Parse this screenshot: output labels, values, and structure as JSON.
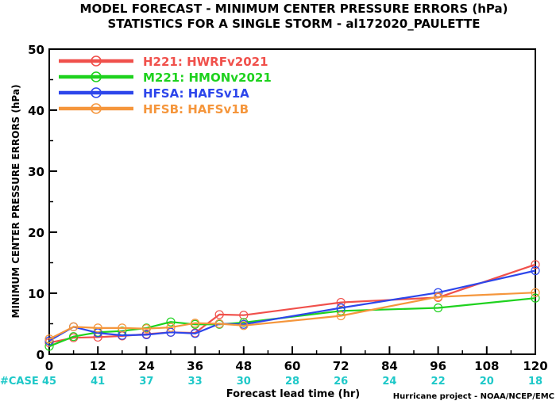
{
  "chart_data": {
    "type": "line",
    "title": "MODEL FORECAST - MINIMUM CENTER PRESSURE ERRORS (hPa)",
    "subtitle": "STATISTICS FOR A SINGLE STORM - al172020_PAULETTE",
    "xlabel": "Forecast lead time (hr)",
    "ylabel": "MINIMUM CENTER PRESSURE ERRORS (hPa)",
    "xlim": [
      0,
      120
    ],
    "ylim": [
      0,
      50
    ],
    "xticks": [
      "0",
      "12",
      "24",
      "36",
      "48",
      "60",
      "72",
      "84",
      "96",
      "108",
      "120"
    ],
    "yticks": [
      "0",
      "10",
      "20",
      "30",
      "40",
      "50"
    ],
    "grid": false,
    "legend_position": "top-left",
    "case_label": "#CASE",
    "case_color": "#1ec8c8",
    "cases": [
      "45",
      "41",
      "37",
      "33",
      "30",
      "28",
      "26",
      "24",
      "22",
      "20",
      "18"
    ],
    "credit": "Hurricane project - NOAA/NCEP/EMC",
    "series": [
      {
        "name": "H221: HWRFv2021",
        "color": "#f0504b",
        "points": [
          [
            0,
            1.9
          ],
          [
            6,
            2.7
          ],
          [
            12,
            2.8
          ],
          [
            18,
            3.0
          ],
          [
            24,
            3.3
          ],
          [
            30,
            3.6
          ],
          [
            36,
            3.5
          ],
          [
            42,
            6.5
          ],
          [
            48,
            6.4
          ],
          [
            72,
            8.5
          ],
          [
            96,
            9.3
          ],
          [
            120,
            14.7
          ]
        ]
      },
      {
        "name": "M221: HMONv2021",
        "color": "#1ed21e",
        "points": [
          [
            0,
            1.3
          ],
          [
            6,
            2.9
          ],
          [
            12,
            3.6
          ],
          [
            18,
            3.8
          ],
          [
            24,
            4.3
          ],
          [
            30,
            5.3
          ],
          [
            36,
            4.9
          ],
          [
            42,
            4.9
          ],
          [
            48,
            5.2
          ],
          [
            72,
            7.1
          ],
          [
            96,
            7.6
          ],
          [
            120,
            9.2
          ]
        ]
      },
      {
        "name": "HFSA: HAFSv1A",
        "color": "#2d46eb",
        "points": [
          [
            0,
            2.2
          ],
          [
            6,
            4.5
          ],
          [
            12,
            3.5
          ],
          [
            18,
            3.1
          ],
          [
            24,
            3.2
          ],
          [
            30,
            3.6
          ],
          [
            36,
            3.4
          ],
          [
            42,
            5.0
          ],
          [
            48,
            4.9
          ],
          [
            72,
            7.6
          ],
          [
            96,
            10.1
          ],
          [
            120,
            13.7
          ]
        ]
      },
      {
        "name": "HFSB: HAFSv1B",
        "color": "#f5963c",
        "points": [
          [
            0,
            2.5
          ],
          [
            6,
            4.5
          ],
          [
            12,
            4.3
          ],
          [
            18,
            4.3
          ],
          [
            24,
            4.2
          ],
          [
            30,
            4.4
          ],
          [
            36,
            5.1
          ],
          [
            42,
            5.0
          ],
          [
            48,
            4.7
          ],
          [
            72,
            6.3
          ],
          [
            96,
            9.4
          ],
          [
            120,
            10.1
          ]
        ]
      }
    ]
  }
}
